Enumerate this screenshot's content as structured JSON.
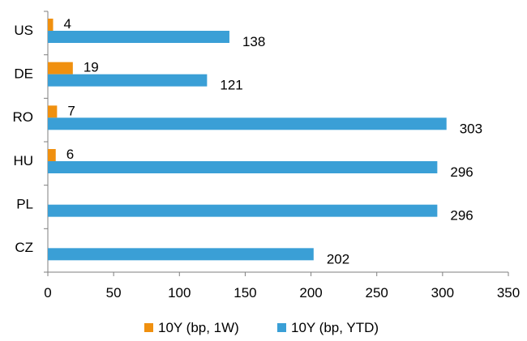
{
  "chart_data": {
    "type": "bar",
    "orientation": "horizontal",
    "categories": [
      "US",
      "DE",
      "RO",
      "HU",
      "PL",
      "CZ"
    ],
    "series": [
      {
        "name": "10Y (bp, 1W)",
        "color": "#f0900f",
        "values": [
          4,
          19,
          7,
          6,
          0,
          0
        ],
        "labels": [
          "4",
          "19",
          "7",
          "6",
          "",
          ""
        ]
      },
      {
        "name": "10Y (bp, YTD)",
        "color": "#3a9fd6",
        "values": [
          138,
          121,
          303,
          296,
          296,
          202
        ],
        "labels": [
          "138",
          "121",
          "303",
          "296",
          "296",
          "202"
        ]
      }
    ],
    "xlim": [
      0,
      350
    ],
    "xticks": [
      "0",
      "50",
      "100",
      "150",
      "200",
      "250",
      "300",
      "350"
    ],
    "grid": false,
    "legend_position": "bottom"
  }
}
